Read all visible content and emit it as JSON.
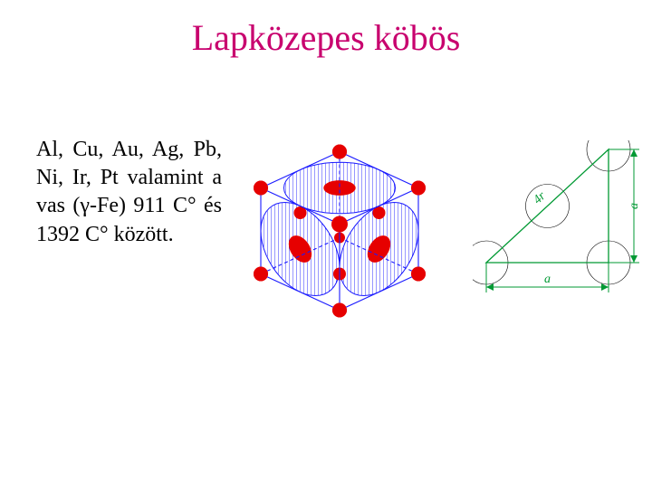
{
  "title": "Lapközepes köbös",
  "body_text": "Al, Cu, Au, Ag, Pb, Ni, Ir, Pt valamint a vas (γ-Fe) 911 C° és 1392 C° között.",
  "cube": {
    "outline_color": "#1a1aff",
    "hatch_color": "#1a1aff",
    "atom_color": "#e60000",
    "front_face_atom_fill": "#cc0000",
    "size": 240,
    "background": "#ffffff"
  },
  "triangle": {
    "line_color": "#009933",
    "text_color": "#009933",
    "label_bottom": "a",
    "label_right": "a",
    "label_hyp": "4r",
    "width": 190,
    "height": 185,
    "arrow_size": 4,
    "fontsize": 14,
    "circle_color": "#000000"
  }
}
